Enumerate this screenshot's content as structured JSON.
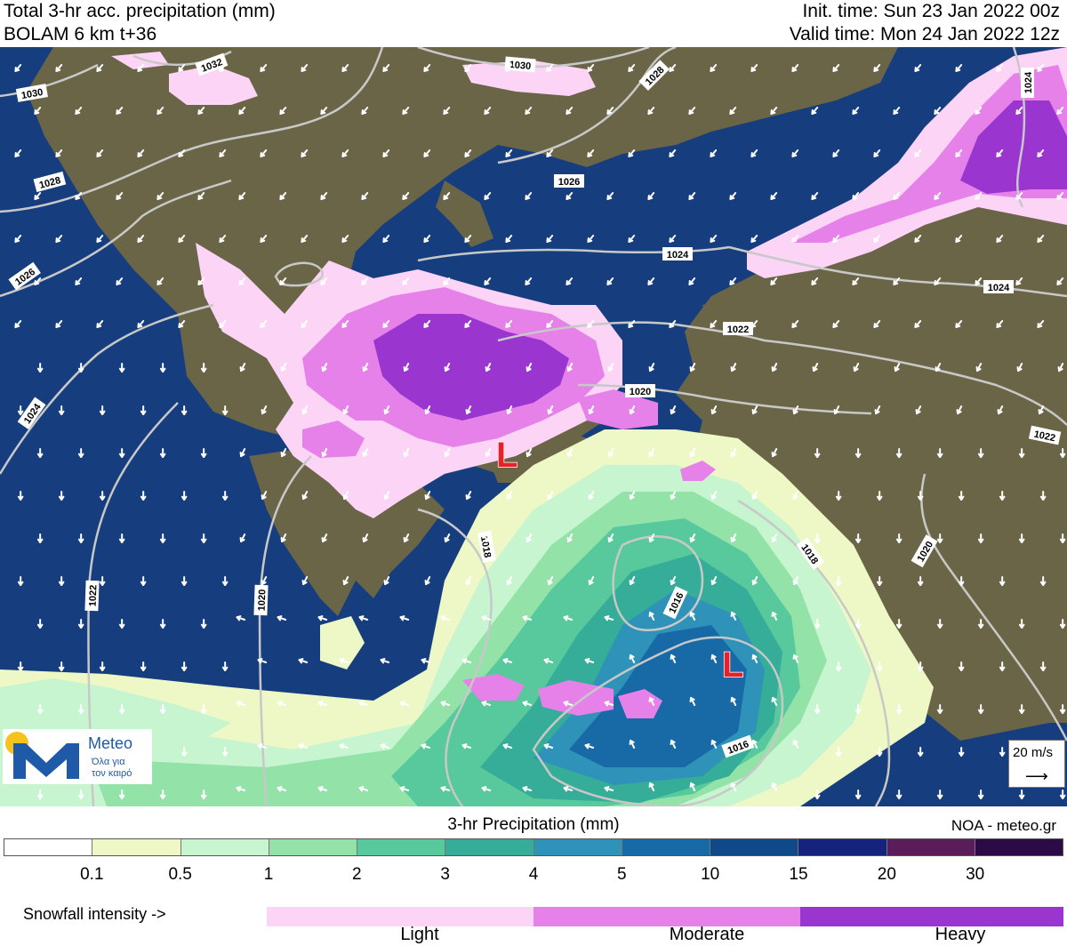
{
  "header": {
    "title": "Total 3-hr acc. precipitation (mm)",
    "model": "BOLAM 6 km t+36",
    "init_time": "Init. time: Sun 23 Jan 2022 00z",
    "valid_time": "Valid time: Mon 24 Jan 2022 12z"
  },
  "colors": {
    "sea": "#163e7e",
    "land": "#6b6547",
    "isobar": "#c8c8c8",
    "low_marker": "#e8202a",
    "snow_light": "#fcd4f6",
    "snow_moderate": "#e681ea",
    "snow_heavy": "#9a35d0"
  },
  "map": {
    "isobars": [
      "1030",
      "1032",
      "1030",
      "1028",
      "1028",
      "1026",
      "1026",
      "1024",
      "1024",
      "1024",
      "1024",
      "1022",
      "1022",
      "1022",
      "1020",
      "1020",
      "1020",
      "1018",
      "1018",
      "1016",
      "1016"
    ],
    "lows": [
      "L",
      "L"
    ]
  },
  "logo": {
    "name": "Meteo",
    "tagline_1": "Όλα για",
    "tagline_2": "τον καιρό"
  },
  "wind_reference": {
    "label": "20 m/s",
    "arrow": "⟶"
  },
  "legend": {
    "title": "3-hr Precipitation (mm)",
    "credit": "NOA - meteo.gr",
    "bins": [
      {
        "color": "#ffffff"
      },
      {
        "color": "#eef8c6"
      },
      {
        "color": "#c7f5cf"
      },
      {
        "color": "#93e3a9"
      },
      {
        "color": "#57c99c"
      },
      {
        "color": "#35ad98"
      },
      {
        "color": "#2f92b8"
      },
      {
        "color": "#176aa6"
      },
      {
        "color": "#10498a"
      },
      {
        "color": "#15237f"
      },
      {
        "color": "#5b1d5a"
      },
      {
        "color": "#2b0a45"
      }
    ],
    "ticks": [
      "0.1",
      "0.5",
      "1",
      "2",
      "3",
      "4",
      "5",
      "10",
      "15",
      "20",
      "30"
    ],
    "snow": {
      "label": "Snowfall intensity ->",
      "levels": [
        {
          "name": "Light",
          "color": "#fcd4f6"
        },
        {
          "name": "Moderate",
          "color": "#e681ea"
        },
        {
          "name": "Heavy",
          "color": "#9a35d0"
        }
      ]
    }
  }
}
